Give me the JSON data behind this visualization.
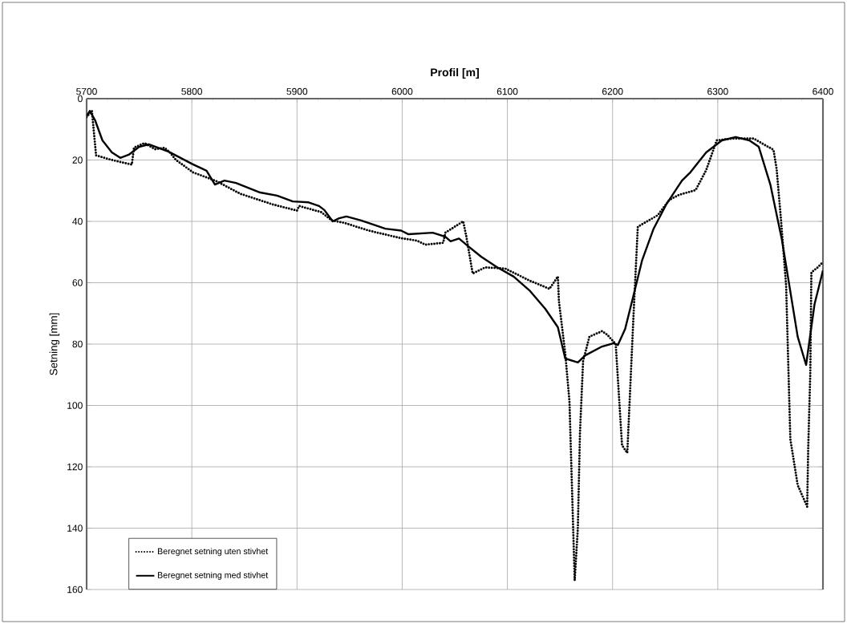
{
  "chart_data": {
    "type": "line",
    "xlabel": "Profil [m]",
    "ylabel": "Setning [mm]",
    "xlim": [
      5700,
      6400
    ],
    "xticks": [
      5700,
      5800,
      5900,
      6000,
      6100,
      6200,
      6300,
      6400
    ],
    "ylim": [
      160,
      0
    ],
    "yticks": [
      0,
      20,
      40,
      60,
      80,
      100,
      120,
      140,
      160
    ],
    "grid": true,
    "legend": "bottom left",
    "marker": "none",
    "series": [
      {
        "name": "Beregnet setning uten stivhet",
        "color": "#000000",
        "line_style": "dotted",
        "x": [
          5700,
          5705,
          5709,
          5724,
          5743,
          5745,
          5755,
          5765,
          5774,
          5779,
          5785,
          5801,
          5824,
          5846,
          5877,
          5900,
          5902,
          5923,
          5933,
          5945,
          5968,
          5999,
          6014,
          6022,
          6039,
          6041,
          6058,
          6061,
          6067,
          6079,
          6098,
          6121,
          6140,
          6148,
          6149,
          6155,
          6159,
          6164,
          6167,
          6169,
          6172,
          6178,
          6190,
          6195,
          6203,
          6209,
          6214,
          6219,
          6220,
          6224,
          6228,
          6243,
          6254,
          6263,
          6279,
          6289,
          6299,
          6314,
          6334,
          6353,
          6356,
          6360,
          6365,
          6369,
          6376,
          6385,
          6386,
          6388,
          6389,
          6395,
          6400
        ],
        "values": [
          6,
          4,
          18.5,
          20,
          21.5,
          16,
          14.5,
          16.5,
          16,
          17.5,
          20,
          24,
          27,
          31,
          34.5,
          36.5,
          35,
          37,
          39.7,
          40.5,
          43,
          45.5,
          46.3,
          47.6,
          47,
          43.7,
          40,
          45,
          57,
          55,
          55.4,
          59.3,
          62,
          58,
          66,
          83,
          98.6,
          157,
          140,
          109,
          85.5,
          77.6,
          75.8,
          77,
          80,
          113,
          115.5,
          77.6,
          70,
          41.8,
          41,
          38,
          33,
          31.4,
          29.8,
          23.3,
          13.6,
          13,
          13,
          16.7,
          23,
          39,
          61,
          111,
          126,
          133,
          114,
          89,
          56.7,
          55,
          53.3
        ]
      },
      {
        "name": "Beregnet setning med stivhet",
        "color": "#000000",
        "line_style": "solid",
        "x": [
          5700,
          5703,
          5708,
          5715,
          5724,
          5732,
          5740,
          5750,
          5759,
          5778,
          5801,
          5814,
          5822,
          5831,
          5842,
          5865,
          5881,
          5896,
          5911,
          5921,
          5926,
          5934,
          5940,
          5947,
          5961,
          5984,
          5999,
          6006,
          6029,
          6041,
          6046,
          6054,
          6061,
          6075,
          6090,
          6106,
          6121,
          6136,
          6148,
          6155,
          6167,
          6174,
          6190,
          6201,
          6205,
          6212,
          6220,
          6228,
          6239,
          6251,
          6266,
          6274,
          6289,
          6304,
          6317,
          6330,
          6339,
          6350,
          6361,
          6376,
          6384,
          6392,
          6400
        ],
        "values": [
          5.7,
          4,
          7,
          13.6,
          17.5,
          19.3,
          18.3,
          15.7,
          14.9,
          17.3,
          21.4,
          23.5,
          28,
          26.7,
          27.5,
          30.6,
          31.6,
          33.5,
          33.8,
          35,
          36.3,
          40,
          39,
          38.4,
          39.7,
          42.4,
          43,
          44.2,
          43.7,
          45,
          46.5,
          45.6,
          47.6,
          51.5,
          54.9,
          58,
          62.5,
          68.5,
          74.5,
          84.7,
          86,
          83.7,
          80.8,
          79.7,
          80.3,
          75,
          64,
          52.8,
          42.4,
          34.5,
          26.7,
          24,
          17.5,
          13.6,
          12.5,
          13.6,
          15.7,
          28,
          46,
          77.6,
          86.8,
          67,
          56
        ]
      }
    ]
  }
}
